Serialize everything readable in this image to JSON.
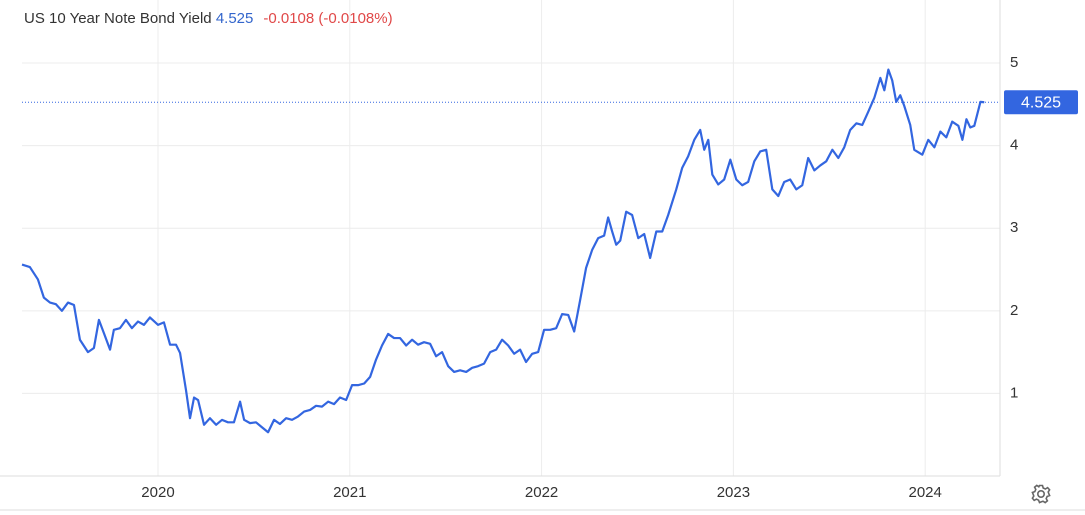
{
  "chart_data": {
    "type": "line",
    "title": "US 10 Year Note Bond Yield",
    "last": 4.525,
    "change": "-0.0108 (-0.0108%)",
    "color": "#3366e0",
    "grid": true,
    "xlim": [
      2019.291,
      2024.39
    ],
    "xticks": [
      2020,
      2021,
      2022,
      2023,
      2024
    ],
    "ylim": [
      0,
      5.4
    ],
    "yticks": [
      1,
      2,
      3,
      4,
      5
    ],
    "x": [
      2019.291,
      2019.332,
      2019.374,
      2019.405,
      2019.437,
      2019.468,
      2019.499,
      2019.531,
      2019.562,
      2019.593,
      2019.635,
      2019.666,
      2019.692,
      2019.718,
      2019.75,
      2019.77,
      2019.802,
      2019.833,
      2019.864,
      2019.896,
      2019.927,
      2019.958,
      2020.0,
      2020.031,
      2020.063,
      2020.094,
      2020.115,
      2020.146,
      2020.167,
      2020.188,
      2020.209,
      2020.24,
      2020.271,
      2020.303,
      2020.334,
      2020.365,
      2020.396,
      2020.428,
      2020.449,
      2020.48,
      2020.511,
      2020.542,
      2020.574,
      2020.605,
      2020.636,
      2020.668,
      2020.699,
      2020.73,
      2020.762,
      2020.793,
      2020.824,
      2020.855,
      2020.887,
      2020.918,
      2020.949,
      2020.981,
      2021.012,
      2021.043,
      2021.075,
      2021.106,
      2021.137,
      2021.168,
      2021.2,
      2021.231,
      2021.262,
      2021.294,
      2021.325,
      2021.356,
      2021.387,
      2021.419,
      2021.45,
      2021.481,
      2021.513,
      2021.544,
      2021.575,
      2021.607,
      2021.638,
      2021.669,
      2021.7,
      2021.732,
      2021.763,
      2021.794,
      2021.826,
      2021.857,
      2021.888,
      2021.919,
      2021.951,
      2021.982,
      2022.013,
      2022.045,
      2022.076,
      2022.107,
      2022.139,
      2022.17,
      2022.201,
      2022.232,
      2022.264,
      2022.295,
      2022.326,
      2022.347,
      2022.368,
      2022.389,
      2022.41,
      2022.441,
      2022.472,
      2022.504,
      2022.535,
      2022.566,
      2022.598,
      2022.629,
      2022.66,
      2022.702,
      2022.733,
      2022.764,
      2022.796,
      2022.827,
      2022.848,
      2022.869,
      2022.89,
      2022.921,
      2022.952,
      2022.984,
      2023.015,
      2023.046,
      2023.077,
      2023.109,
      2023.14,
      2023.171,
      2023.203,
      2023.234,
      2023.265,
      2023.296,
      2023.328,
      2023.359,
      2023.39,
      2023.422,
      2023.453,
      2023.484,
      2023.516,
      2023.547,
      2023.578,
      2023.609,
      2023.641,
      2023.672,
      2023.703,
      2023.735,
      2023.766,
      2023.787,
      2023.808,
      2023.828,
      2023.849,
      2023.87,
      2023.891,
      2023.922,
      2023.943,
      2023.985,
      2024.016,
      2024.048,
      2024.079,
      2024.11,
      2024.141,
      2024.173,
      2024.194,
      2024.215,
      2024.235,
      2024.256,
      2024.288,
      2024.308
    ],
    "values": [
      2.56,
      2.53,
      2.38,
      2.16,
      2.1,
      2.08,
      2.0,
      2.1,
      2.07,
      1.65,
      1.5,
      1.55,
      1.89,
      1.73,
      1.53,
      1.77,
      1.79,
      1.89,
      1.79,
      1.87,
      1.83,
      1.92,
      1.83,
      1.86,
      1.59,
      1.59,
      1.49,
      1.04,
      0.7,
      0.95,
      0.92,
      0.62,
      0.7,
      0.62,
      0.68,
      0.65,
      0.65,
      0.9,
      0.68,
      0.64,
      0.65,
      0.59,
      0.53,
      0.68,
      0.63,
      0.7,
      0.68,
      0.72,
      0.78,
      0.8,
      0.85,
      0.84,
      0.9,
      0.87,
      0.95,
      0.92,
      1.1,
      1.1,
      1.12,
      1.2,
      1.41,
      1.58,
      1.72,
      1.67,
      1.67,
      1.58,
      1.65,
      1.59,
      1.62,
      1.6,
      1.45,
      1.5,
      1.33,
      1.26,
      1.28,
      1.26,
      1.31,
      1.33,
      1.36,
      1.5,
      1.53,
      1.65,
      1.58,
      1.48,
      1.53,
      1.38,
      1.48,
      1.5,
      1.77,
      1.77,
      1.79,
      1.96,
      1.95,
      1.75,
      2.13,
      2.52,
      2.74,
      2.88,
      2.91,
      3.13,
      2.96,
      2.8,
      2.85,
      3.2,
      3.16,
      2.88,
      2.93,
      2.64,
      2.96,
      2.96,
      3.16,
      3.47,
      3.73,
      3.87,
      4.07,
      4.19,
      3.95,
      4.07,
      3.65,
      3.53,
      3.59,
      3.83,
      3.59,
      3.52,
      3.56,
      3.81,
      3.93,
      3.95,
      3.47,
      3.39,
      3.56,
      3.59,
      3.47,
      3.52,
      3.85,
      3.7,
      3.76,
      3.81,
      3.95,
      3.85,
      3.98,
      4.19,
      4.27,
      4.25,
      4.41,
      4.58,
      4.82,
      4.67,
      4.92,
      4.79,
      4.53,
      4.61,
      4.48,
      4.25,
      3.95,
      3.89,
      4.07,
      3.98,
      4.17,
      4.1,
      4.29,
      4.24,
      4.07,
      4.32,
      4.22,
      4.24,
      4.53,
      4.525
    ]
  }
}
